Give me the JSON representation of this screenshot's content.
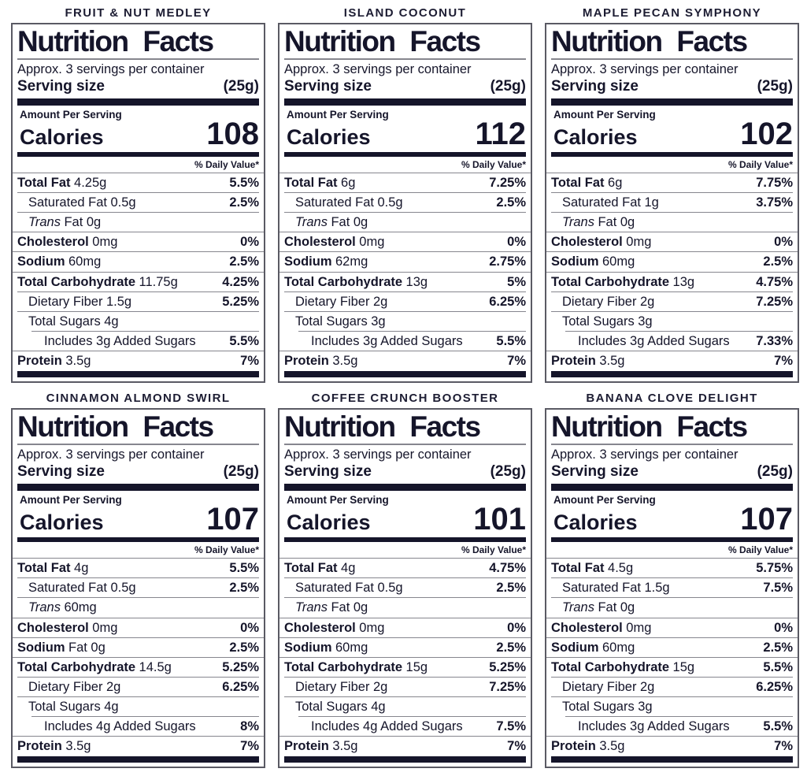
{
  "shared": {
    "heading": "Nutrition Facts",
    "servings_line": "Approx. 3 servings per container",
    "serving_size_label": "Serving size",
    "serving_size_value": "(25g)",
    "amount_per_serving": "Amount Per Serving",
    "calories_label": "Calories",
    "daily_value_header": "% Daily Value*"
  },
  "colors": {
    "ink": "#15152a",
    "panel_border": "#5a5a64",
    "separator": "#86868e"
  },
  "labels": [
    {
      "title": "FRUIT & NUT MEDLEY",
      "calories": "108",
      "rows": [
        {
          "t": "Total Fat",
          "a": "4.25g",
          "dv": "5.5%"
        },
        {
          "t": "Saturated Fat",
          "a": "0.5g",
          "dv": "2.5%"
        },
        {
          "t": "Trans",
          "a": "Fat 0g",
          "dv": ""
        },
        {
          "t": "Cholesterol",
          "a": "0mg",
          "dv": "0%"
        },
        {
          "t": "Sodium",
          "a": "60mg",
          "dv": "2.5%"
        },
        {
          "t": "Total Carbohydrate",
          "a": "11.75g",
          "dv": "4.25%"
        },
        {
          "t": "Dietary Fiber",
          "a": "1.5g",
          "dv": "5.25%"
        },
        {
          "t": "Total Sugars",
          "a": "4g",
          "dv": ""
        },
        {
          "t": "Includes 3g Added Sugars",
          "a": "",
          "dv": "5.5%"
        },
        {
          "t": "Protein",
          "a": "3.5g",
          "dv": "7%"
        }
      ]
    },
    {
      "title": "ISLAND COCONUT",
      "calories": "112",
      "rows": [
        {
          "t": "Total Fat",
          "a": "6g",
          "dv": "7.25%"
        },
        {
          "t": "Saturated Fat",
          "a": "0.5g",
          "dv": "2.5%"
        },
        {
          "t": "Trans",
          "a": "Fat 0g",
          "dv": ""
        },
        {
          "t": "Cholesterol",
          "a": "0mg",
          "dv": "0%"
        },
        {
          "t": "Sodium",
          "a": "62mg",
          "dv": "2.75%"
        },
        {
          "t": "Total Carbohydrate",
          "a": "13g",
          "dv": "5%"
        },
        {
          "t": "Dietary Fiber",
          "a": "2g",
          "dv": "6.25%"
        },
        {
          "t": "Total Sugars",
          "a": "3g",
          "dv": ""
        },
        {
          "t": "Includes 3g Added Sugars",
          "a": "",
          "dv": "5.5%"
        },
        {
          "t": "Protein",
          "a": "3.5g",
          "dv": "7%"
        }
      ]
    },
    {
      "title": "MAPLE PECAN SYMPHONY",
      "calories": "102",
      "rows": [
        {
          "t": "Total Fat",
          "a": "6g",
          "dv": "7.75%"
        },
        {
          "t": "Saturated Fat",
          "a": "1g",
          "dv": "3.75%"
        },
        {
          "t": "Trans",
          "a": "Fat 0g",
          "dv": ""
        },
        {
          "t": "Cholesterol",
          "a": "0mg",
          "dv": "0%"
        },
        {
          "t": "Sodium",
          "a": "60mg",
          "dv": "2.5%"
        },
        {
          "t": "Total Carbohydrate",
          "a": "13g",
          "dv": "4.75%"
        },
        {
          "t": "Dietary Fiber",
          "a": "2g",
          "dv": "7.25%"
        },
        {
          "t": "Total Sugars",
          "a": "3g",
          "dv": ""
        },
        {
          "t": "Includes 3g Added Sugars",
          "a": "",
          "dv": "7.33%"
        },
        {
          "t": "Protein",
          "a": "3.5g",
          "dv": "7%"
        }
      ]
    },
    {
      "title": "CINNAMON ALMOND SWIRL",
      "calories": "107",
      "rows": [
        {
          "t": "Total Fat",
          "a": "4g",
          "dv": "5.5%"
        },
        {
          "t": "Saturated Fat",
          "a": "0.5g",
          "dv": "2.5%"
        },
        {
          "t": "Trans",
          "a": "60mg",
          "dv": ""
        },
        {
          "t": "Cholesterol",
          "a": "0mg",
          "dv": "0%"
        },
        {
          "t": "Sodium",
          "a": "Fat 0g",
          "dv": "2.5%"
        },
        {
          "t": "Total Carbohydrate",
          "a": "14.5g",
          "dv": "5.25%"
        },
        {
          "t": "Dietary Fiber",
          "a": "2g",
          "dv": "6.25%"
        },
        {
          "t": "Total Sugars",
          "a": "4g",
          "dv": ""
        },
        {
          "t": "Includes 4g Added Sugars",
          "a": "",
          "dv": "8%"
        },
        {
          "t": "Protein",
          "a": "3.5g",
          "dv": "7%"
        }
      ]
    },
    {
      "title": "COFFEE CRUNCH BOOSTER",
      "calories": "101",
      "rows": [
        {
          "t": "Total Fat",
          "a": "4g",
          "dv": "4.75%"
        },
        {
          "t": "Saturated Fat",
          "a": "0.5g",
          "dv": "2.5%"
        },
        {
          "t": "Trans",
          "a": "Fat 0g",
          "dv": ""
        },
        {
          "t": "Cholesterol",
          "a": "0mg",
          "dv": "0%"
        },
        {
          "t": "Sodium",
          "a": "60mg",
          "dv": "2.5%"
        },
        {
          "t": "Total Carbohydrate",
          "a": "15g",
          "dv": "5.25%"
        },
        {
          "t": "Dietary Fiber",
          "a": "2g",
          "dv": "7.25%"
        },
        {
          "t": "Total Sugars",
          "a": "4g",
          "dv": ""
        },
        {
          "t": "Includes 4g Added Sugars",
          "a": "",
          "dv": "7.5%"
        },
        {
          "t": "Protein",
          "a": "3.5g",
          "dv": "7%"
        }
      ]
    },
    {
      "title": "BANANA CLOVE DELIGHT",
      "calories": "107",
      "rows": [
        {
          "t": "Total Fat",
          "a": "4.5g",
          "dv": "5.75%"
        },
        {
          "t": "Saturated Fat",
          "a": "1.5g",
          "dv": "7.5%"
        },
        {
          "t": "Trans",
          "a": "Fat 0g",
          "dv": ""
        },
        {
          "t": "Cholesterol",
          "a": "0mg",
          "dv": "0%"
        },
        {
          "t": "Sodium",
          "a": "60mg",
          "dv": "2.5%"
        },
        {
          "t": "Total Carbohydrate",
          "a": "15g",
          "dv": "5.5%"
        },
        {
          "t": "Dietary Fiber",
          "a": "2g",
          "dv": "6.25%"
        },
        {
          "t": "Total Sugars",
          "a": "3g",
          "dv": ""
        },
        {
          "t": "Includes 3g Added Sugars",
          "a": "",
          "dv": "5.5%"
        },
        {
          "t": "Protein",
          "a": "3.5g",
          "dv": "7%"
        }
      ]
    }
  ]
}
